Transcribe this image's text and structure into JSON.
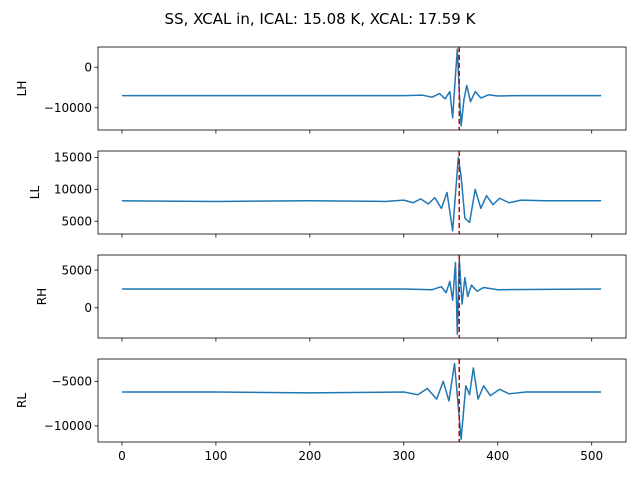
{
  "title": "SS, XCAL in, ICAL: 15.08 K, XCAL: 17.59 K",
  "colors": {
    "line": "#1f77b4",
    "marker_line": "#cc0000",
    "axes": "#000000",
    "background": "#ffffff"
  },
  "chart_data": {
    "type": "line",
    "layout": "4 vertically stacked panels with shared x-axis",
    "grid": false,
    "x_ticks": [
      0,
      100,
      200,
      300,
      400,
      500
    ],
    "xlim": [
      -25.5,
      536.5
    ],
    "marker_x": 359,
    "marker_style": "dashed red vertical line",
    "panels": [
      {
        "ylabel": "LH",
        "ylim": [
          -15500,
          5000
        ],
        "yticks": [
          0,
          -10000
        ],
        "ytick_labels": [
          "0",
          "−10000"
        ],
        "baseline": -7000,
        "series": [
          {
            "x": 0,
            "y": -7000
          },
          {
            "x": 100,
            "y": -7000
          },
          {
            "x": 200,
            "y": -7000
          },
          {
            "x": 300,
            "y": -7000
          },
          {
            "x": 320,
            "y": -6900
          },
          {
            "x": 330,
            "y": -7400
          },
          {
            "x": 338,
            "y": -6500
          },
          {
            "x": 344,
            "y": -7800
          },
          {
            "x": 349,
            "y": -6000
          },
          {
            "x": 352,
            "y": -12500
          },
          {
            "x": 355,
            "y": -2000
          },
          {
            "x": 357,
            "y": 4500
          },
          {
            "x": 359,
            "y": -6000
          },
          {
            "x": 361,
            "y": -14500
          },
          {
            "x": 364,
            "y": -8000
          },
          {
            "x": 367,
            "y": -4500
          },
          {
            "x": 371,
            "y": -8500
          },
          {
            "x": 376,
            "y": -6000
          },
          {
            "x": 382,
            "y": -7600
          },
          {
            "x": 390,
            "y": -6800
          },
          {
            "x": 400,
            "y": -7100
          },
          {
            "x": 420,
            "y": -7000
          },
          {
            "x": 510,
            "y": -7000
          }
        ]
      },
      {
        "ylabel": "LL",
        "ylim": [
          3000,
          16000
        ],
        "yticks": [
          5000,
          10000,
          15000
        ],
        "ytick_labels": [
          "5000",
          "10000",
          "15000"
        ],
        "baseline": 8200,
        "series": [
          {
            "x": 0,
            "y": 8200
          },
          {
            "x": 100,
            "y": 8100
          },
          {
            "x": 200,
            "y": 8200
          },
          {
            "x": 280,
            "y": 8100
          },
          {
            "x": 300,
            "y": 8300
          },
          {
            "x": 310,
            "y": 7900
          },
          {
            "x": 318,
            "y": 8500
          },
          {
            "x": 326,
            "y": 7700
          },
          {
            "x": 333,
            "y": 8700
          },
          {
            "x": 340,
            "y": 7000
          },
          {
            "x": 346,
            "y": 9500
          },
          {
            "x": 352,
            "y": 3500
          },
          {
            "x": 358,
            "y": 15000
          },
          {
            "x": 361,
            "y": 12000
          },
          {
            "x": 365,
            "y": 5500
          },
          {
            "x": 370,
            "y": 4800
          },
          {
            "x": 376,
            "y": 10000
          },
          {
            "x": 382,
            "y": 7000
          },
          {
            "x": 388,
            "y": 9000
          },
          {
            "x": 395,
            "y": 7600
          },
          {
            "x": 402,
            "y": 8600
          },
          {
            "x": 412,
            "y": 7900
          },
          {
            "x": 425,
            "y": 8300
          },
          {
            "x": 450,
            "y": 8200
          },
          {
            "x": 510,
            "y": 8200
          }
        ]
      },
      {
        "ylabel": "RH",
        "ylim": [
          -4000,
          7000
        ],
        "yticks": [
          0,
          5000
        ],
        "ytick_labels": [
          "0",
          "5000"
        ],
        "baseline": 2500,
        "series": [
          {
            "x": 0,
            "y": 2500
          },
          {
            "x": 200,
            "y": 2500
          },
          {
            "x": 300,
            "y": 2500
          },
          {
            "x": 330,
            "y": 2400
          },
          {
            "x": 340,
            "y": 2800
          },
          {
            "x": 345,
            "y": 2000
          },
          {
            "x": 349,
            "y": 3500
          },
          {
            "x": 352,
            "y": 1000
          },
          {
            "x": 355,
            "y": 6000
          },
          {
            "x": 357,
            "y": -3500
          },
          {
            "x": 359,
            "y": 6500
          },
          {
            "x": 362,
            "y": 500
          },
          {
            "x": 365,
            "y": 4000
          },
          {
            "x": 368,
            "y": 1500
          },
          {
            "x": 372,
            "y": 3000
          },
          {
            "x": 378,
            "y": 2200
          },
          {
            "x": 385,
            "y": 2700
          },
          {
            "x": 400,
            "y": 2400
          },
          {
            "x": 510,
            "y": 2500
          }
        ]
      },
      {
        "ylabel": "RL",
        "ylim": [
          -11800,
          -2500
        ],
        "yticks": [
          -5000,
          -10000
        ],
        "ytick_labels": [
          "−5000",
          "−10000"
        ],
        "baseline": -6200,
        "series": [
          {
            "x": 0,
            "y": -6200
          },
          {
            "x": 100,
            "y": -6200
          },
          {
            "x": 200,
            "y": -6300
          },
          {
            "x": 300,
            "y": -6200
          },
          {
            "x": 315,
            "y": -6500
          },
          {
            "x": 325,
            "y": -5800
          },
          {
            "x": 335,
            "y": -7000
          },
          {
            "x": 342,
            "y": -5000
          },
          {
            "x": 348,
            "y": -7200
          },
          {
            "x": 354,
            "y": -3000
          },
          {
            "x": 361,
            "y": -11500
          },
          {
            "x": 366,
            "y": -5500
          },
          {
            "x": 370,
            "y": -6500
          },
          {
            "x": 374,
            "y": -3500
          },
          {
            "x": 379,
            "y": -7000
          },
          {
            "x": 385,
            "y": -5500
          },
          {
            "x": 392,
            "y": -6600
          },
          {
            "x": 402,
            "y": -5900
          },
          {
            "x": 412,
            "y": -6400
          },
          {
            "x": 430,
            "y": -6200
          },
          {
            "x": 510,
            "y": -6200
          }
        ]
      }
    ]
  }
}
